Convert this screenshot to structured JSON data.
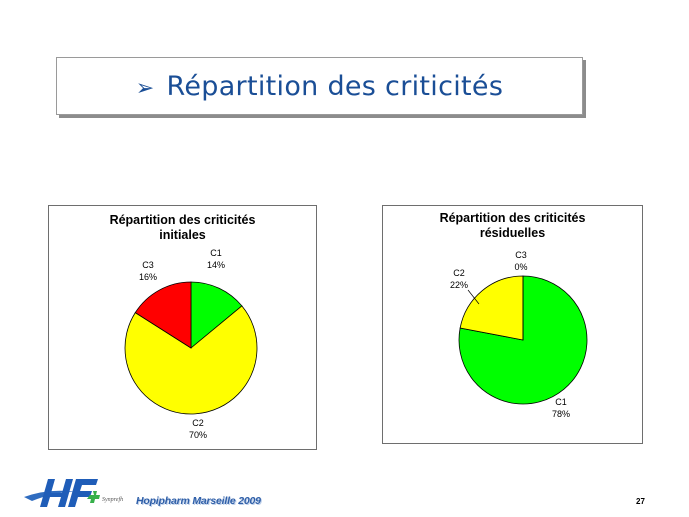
{
  "slide": {
    "title": "Répartition des criticités",
    "title_bullet": "➢",
    "footer": "Hopipharm Marseille 2009",
    "page_number": "27",
    "logo_small_text": "Synprefh"
  },
  "colors": {
    "C1": "#00ff00",
    "C2": "#ffff00",
    "C3": "#ff0000",
    "title": "#1a4e96"
  },
  "chart_data": [
    {
      "type": "pie",
      "title": "Répartition des criticités initiales",
      "title_lines": [
        "Répartition des criticités",
        "initiales"
      ],
      "legend": "none",
      "slices": [
        {
          "name": "C1",
          "value": 14,
          "label": "14%"
        },
        {
          "name": "C2",
          "value": 70,
          "label": "70%"
        },
        {
          "name": "C3",
          "value": 16,
          "label": "16%"
        }
      ]
    },
    {
      "type": "pie",
      "title": "Répartition des criticités résiduelles",
      "title_lines": [
        "Répartition des criticités",
        "résiduelles"
      ],
      "legend": "none",
      "slices": [
        {
          "name": "C1",
          "value": 78,
          "label": "78%"
        },
        {
          "name": "C2",
          "value": 22,
          "label": "22%"
        },
        {
          "name": "C3",
          "value": 0,
          "label": "0%"
        }
      ]
    }
  ]
}
